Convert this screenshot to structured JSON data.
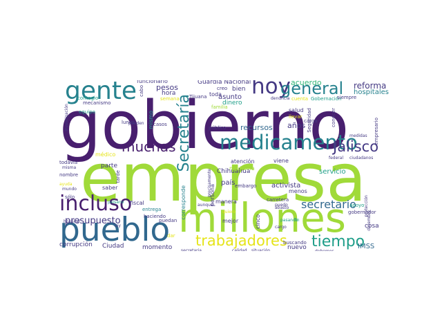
{
  "colors": {
    "dark_purple": "#481f6e",
    "purple": "#443983",
    "blue": "#31688e",
    "teal": "#26828e",
    "green_teal": "#1f9e89",
    "green": "#35b779",
    "lime": "#a0da39",
    "yellow": "#e5e419"
  },
  "words": {
    "gobierno": "gobierno",
    "empresa": "empresa",
    "millones": "millones",
    "pueblo": "pueblo",
    "medicamento": "medicamento",
    "gente": "gente",
    "hoy": "hoy",
    "general": "general",
    "incluso": "incluso",
    "muchas": "muchas",
    "jalisco": "Jalisco",
    "secretaria": "Secretaría",
    "trabajadores": "trabajadores",
    "tiempo": "tiempo",
    "secretario": "secretario",
    "presupuesto": "presupuesto",
    "reforma": "reforma",
    "hospitales": "hospitales",
    "acuerdo": "acuerdo",
    "guardia_nacional": "Guardia Nacional",
    "pesos": "pesos",
    "hora": "hora",
    "funcionario": "funcionario",
    "cabo": "cabo",
    "semana": "semana",
    "asunto": "asunto",
    "dinero": "dinero",
    "toda": "toda",
    "bien": "bien",
    "creo": "creo",
    "tijuana": "Tijuana",
    "familia": "familia",
    "denuncia": "denuncia",
    "cuenta": "cuenta",
    "gobernacion": "Gobernación",
    "siempre": "siempre",
    "salud": "salud",
    "llevar": "llevar",
    "conocer": "conocer",
    "recursos": "recursos",
    "anos": "años",
    "seguridad": "Seguridad",
    "carga": "carga",
    "publico": "público",
    "casos": "casos",
    "pueden": "pueden",
    "mismo": "mismo",
    "equipo": "equipo",
    "contagio": "contagio",
    "investigacion": "investigación",
    "mecanismo": "mecanismo",
    "lunes": "lunes",
    "medico": "médico",
    "parte": "parte",
    "atencion": "atención",
    "viene": "viene",
    "medidas": "medidas",
    "ciudadanos": "ciudadanos",
    "federal": "federal",
    "empresario": "empresario",
    "servicio": "servicio",
    "chihuahua": "Chihuahua",
    "persona": "persona",
    "precisamente": "precisamente",
    "pais": "país",
    "activista": "activista",
    "menos": "menos",
    "medicina": "medicina",
    "embargo": "embargo",
    "todavia": "todavía",
    "misma": "misma",
    "nombre": "nombre",
    "ayuda": "ayuda",
    "tarde": "tarde",
    "saber": "saber",
    "corresponde": "corresponde",
    "mundo": "mundo",
    "solo": "sólo",
    "paisano": "paisano",
    "fiscal": "fiscal",
    "entrega": "entrega",
    "haciendo": "haciendo",
    "aunque": "aunque",
    "manera": "manera",
    "carretera": "carretera",
    "puedo": "puedo",
    "abasto": "abasto",
    "apoyo": "apoyo",
    "proteccion": "protección",
    "gobernador": "gobernador",
    "diciembre": "diciembre",
    "hospital": "hospital",
    "ley": "ley",
    "quiero": "quiero",
    "mejor": "mejor",
    "cinco": "cinco",
    "cargo": "cargo",
    "pasando": "pasando",
    "fin": "fin",
    "buscando": "buscando",
    "cosa": "cosa",
    "imss": "IMSS",
    "corrupcion": "corrupción",
    "ciudad": "Ciudad",
    "momento": "momento",
    "dar": "dar",
    "puedan": "puedan",
    "nuevo": "nuevo",
    "secretaria_low": "secretaria",
    "calidad": "calidad",
    "situacion": "situación",
    "debemos": "debemos"
  }
}
